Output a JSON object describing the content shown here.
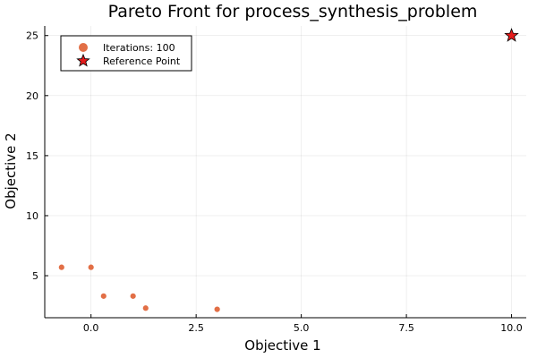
{
  "chart_data": {
    "type": "scatter",
    "title": "Pareto Front for process_synthesis_problem",
    "xlabel": "Objective 1",
    "ylabel": "Objective 2",
    "xlim": [
      -1.1,
      10.35
    ],
    "ylim": [
      1.5,
      25.8
    ],
    "xticks": [
      0.0,
      2.5,
      5.0,
      7.5,
      10.0
    ],
    "xtick_labels": [
      "0.0",
      "2.5",
      "5.0",
      "7.5",
      "10.0"
    ],
    "yticks": [
      5,
      10,
      15,
      20,
      25
    ],
    "ytick_labels": [
      "5",
      "10",
      "15",
      "20",
      "25"
    ],
    "grid": true,
    "legend_position": "top-left",
    "series": [
      {
        "name": "Iterations: 100",
        "marker": "circle",
        "color": "#e26f46",
        "points": [
          {
            "x": -0.7,
            "y": 5.7
          },
          {
            "x": 0.0,
            "y": 5.7
          },
          {
            "x": 0.3,
            "y": 3.3
          },
          {
            "x": 1.0,
            "y": 3.3
          },
          {
            "x": 1.3,
            "y": 2.3
          },
          {
            "x": 3.0,
            "y": 2.2
          }
        ]
      },
      {
        "name": "Reference Point",
        "marker": "star",
        "color": "#e51b1b",
        "points": [
          {
            "x": 10.0,
            "y": 25.0
          }
        ]
      }
    ]
  }
}
